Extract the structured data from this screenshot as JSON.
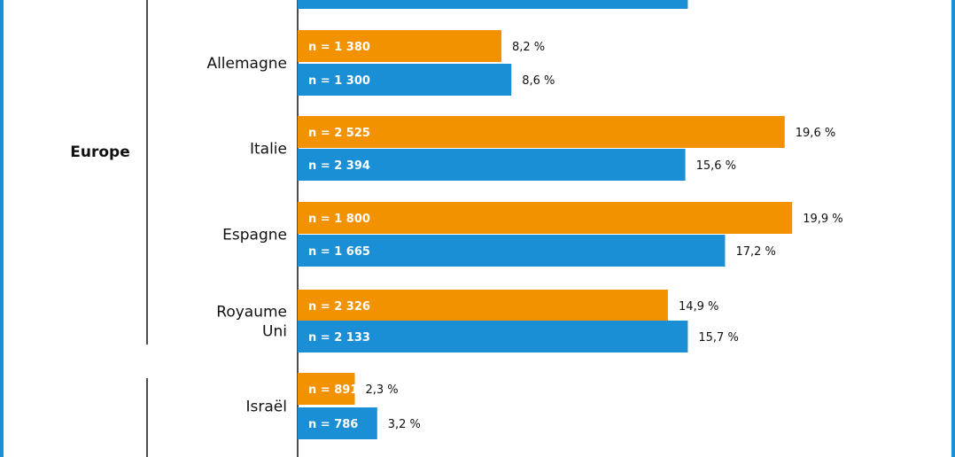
{
  "colors": {
    "orange": "#f39200",
    "blue": "#1a8fd6",
    "frame": "#1a8fd6"
  },
  "groups": [
    {
      "name": "Europe"
    }
  ],
  "chart_data": {
    "type": "bar",
    "orientation": "horizontal",
    "categories": [
      "",
      "Allemagne",
      "Italie",
      "Espagne",
      "Royaume\nUni",
      "Israël"
    ],
    "series": [
      {
        "color": "#f39200",
        "values": [
          null,
          8.2,
          19.6,
          19.9,
          14.9,
          2.3
        ],
        "n_labels": [
          null,
          "n = 1 380",
          "n = 2 525",
          "n = 1 800",
          "n = 2 326",
          "n = 891"
        ],
        "value_labels": [
          null,
          "8,2 %",
          "19,6 %",
          "19,9 %",
          "14,9 %",
          "2,3 %"
        ]
      },
      {
        "color": "#1a8fd6",
        "values": [
          15.7,
          8.6,
          15.6,
          17.2,
          15.7,
          3.2
        ],
        "n_labels": [
          "",
          "n = 1 300",
          "n = 2 394",
          "n = 1 665",
          "n = 2 133",
          "n = 786"
        ],
        "value_labels": [
          "",
          "8,6 %",
          "15,6 %",
          "17,2 %",
          "15,7 %",
          "3,2 %"
        ]
      }
    ],
    "group_labels": [
      {
        "label": "Europe",
        "categories": [
          "Allemagne",
          "Italie",
          "Espagne",
          "Royaume\nUni"
        ]
      }
    ],
    "xlim": [
      0,
      20
    ],
    "grid": false,
    "legend": "none"
  }
}
